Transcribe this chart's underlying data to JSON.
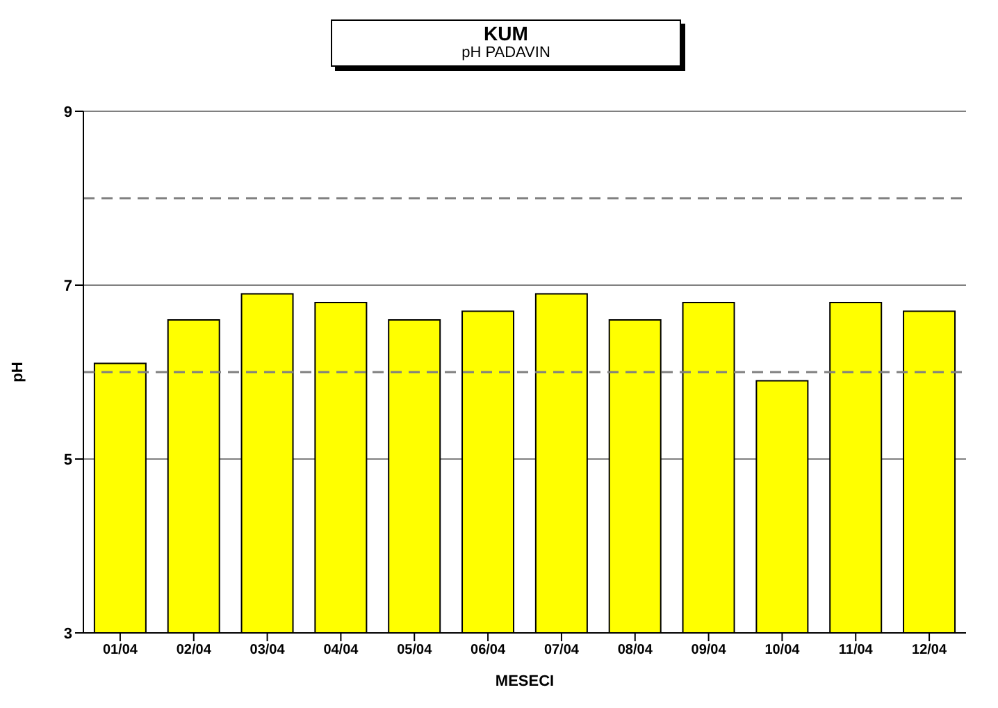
{
  "chart_data": {
    "type": "bar",
    "title": "KUM",
    "subtitle": "pH PADAVIN",
    "xlabel": "MESECI",
    "ylabel": "pH",
    "categories": [
      "01/04",
      "02/04",
      "03/04",
      "04/04",
      "05/04",
      "06/04",
      "07/04",
      "08/04",
      "09/04",
      "10/04",
      "11/04",
      "12/04"
    ],
    "values": [
      6.1,
      6.6,
      6.9,
      6.8,
      6.6,
      6.7,
      6.9,
      6.6,
      6.8,
      5.9,
      6.8,
      6.7
    ],
    "color": "#ffff00",
    "ylim": [
      3,
      9
    ],
    "yticks": [
      3,
      5,
      7,
      9
    ],
    "grid": "y",
    "ref_lines": [
      {
        "axis": "y",
        "value": 8,
        "label": null,
        "color": "#808080",
        "line_style": "dashed"
      },
      {
        "axis": "y",
        "value": 6,
        "label": null,
        "color": "#808080",
        "line_style": "dashed"
      }
    ]
  }
}
